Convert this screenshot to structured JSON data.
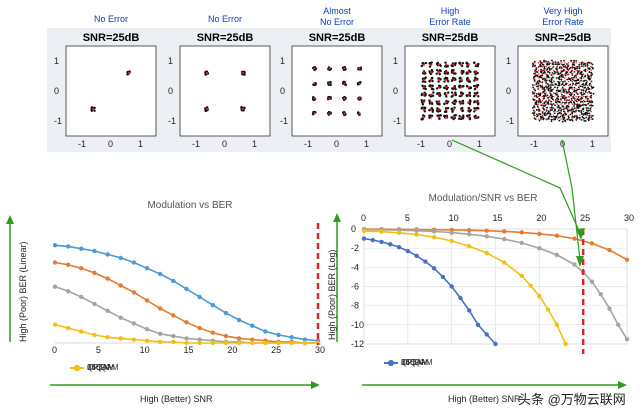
{
  "colors": {
    "s256": "#4a9bd7",
    "s64": "#e67c33",
    "s16": "#a5a5a5",
    "qpsk": "#f2c014",
    "dark": "#4472c4",
    "red": "#d9262b",
    "green": "#2e9b1e",
    "label": "#0b3fb8"
  },
  "constellations": [
    {
      "label": "No Error",
      "snr": "SNR=25dB",
      "ticks_x": [
        "-1",
        "0",
        "1"
      ],
      "ticks_y": [
        "1",
        "0",
        "-1"
      ]
    },
    {
      "label": "No Error",
      "snr": "SNR=25dB",
      "ticks_x": [
        "-1",
        "0",
        "1"
      ],
      "ticks_y": [
        "1",
        "0",
        "-1"
      ]
    },
    {
      "label": "Almost\nNo Error",
      "snr": "SNR=25dB",
      "ticks_x": [
        "-1",
        "0",
        "1"
      ],
      "ticks_y": [
        "1",
        "0",
        "-1"
      ]
    },
    {
      "label": "High\nError Rate",
      "snr": "SNR=25dB",
      "ticks_x": [
        "-1",
        "0",
        "1"
      ],
      "ticks_y": [
        "1",
        "0",
        "-1"
      ]
    },
    {
      "label": "Very High\nError Rate",
      "snr": "SNR=25dB",
      "ticks_x": [
        "-1",
        "0",
        "1"
      ],
      "ticks_y": [
        "1",
        "0",
        "-1"
      ]
    }
  ],
  "chart_data": [
    {
      "type": "line",
      "title": "Modulation vs BER",
      "xlabel": "",
      "ylabel": "High (Poor) BER (Linear)",
      "x_ticks": [
        "0",
        "5",
        "10",
        "15",
        "20",
        "25",
        "30"
      ],
      "xlim": [
        0,
        30
      ],
      "ylim": [
        0,
        1
      ],
      "x": [
        0,
        1.5,
        3,
        4.5,
        6,
        7.5,
        9,
        10.5,
        12,
        13.5,
        15,
        16.5,
        18,
        19.5,
        21,
        22.5,
        24,
        25.5,
        27,
        28.5,
        30
      ],
      "series": [
        {
          "name": "256QAM",
          "values": [
            0.85,
            0.84,
            0.82,
            0.8,
            0.77,
            0.74,
            0.7,
            0.65,
            0.6,
            0.54,
            0.47,
            0.4,
            0.33,
            0.26,
            0.2,
            0.15,
            0.1,
            0.07,
            0.05,
            0.03,
            0.02
          ]
        },
        {
          "name": "64QAM",
          "values": [
            0.7,
            0.68,
            0.65,
            0.61,
            0.56,
            0.5,
            0.44,
            0.37,
            0.3,
            0.24,
            0.18,
            0.13,
            0.09,
            0.06,
            0.04,
            0.03,
            0.02,
            0.01,
            0.01,
            0.0,
            0.0
          ]
        },
        {
          "name": "16QAM",
          "values": [
            0.49,
            0.45,
            0.4,
            0.34,
            0.28,
            0.22,
            0.17,
            0.12,
            0.08,
            0.06,
            0.04,
            0.03,
            0.02,
            0.01,
            0.01,
            0.0,
            0.0,
            0.0,
            0.0,
            0.0,
            0.0
          ]
        },
        {
          "name": "QPSK",
          "values": [
            0.16,
            0.13,
            0.1,
            0.07,
            0.05,
            0.04,
            0.03,
            0.02,
            0.01,
            0.01,
            0.0,
            0.0,
            0.0,
            0.0,
            0.0,
            0.0,
            0.0,
            0.0,
            0.0,
            0.0,
            0.0
          ]
        }
      ],
      "marker_line_x": 30,
      "legend": [
        "256QAM",
        "64QAM",
        "16QAM",
        "QPSK"
      ],
      "bottom_label": "High (Better) SNR"
    },
    {
      "type": "line",
      "title": "Modulation/SNR vs BER",
      "xlabel": "",
      "ylabel": "High (Poor) BER (Log)",
      "x_ticks": [
        "0",
        "5",
        "10",
        "15",
        "20",
        "25",
        "30"
      ],
      "y_ticks": [
        "0",
        "-2",
        "-4",
        "-6",
        "-8",
        "-10",
        "-12"
      ],
      "xlim": [
        0,
        30
      ],
      "ylim": [
        -12,
        0
      ],
      "series": [
        {
          "name": "256QAM",
          "x": [
            0,
            2,
            4,
            6,
            8,
            10,
            12,
            14,
            16,
            18,
            20,
            22,
            24,
            26,
            28,
            30
          ],
          "values": [
            -0.01,
            -0.02,
            -0.03,
            -0.05,
            -0.07,
            -0.1,
            -0.13,
            -0.18,
            -0.25,
            -0.35,
            -0.5,
            -0.7,
            -1.0,
            -1.5,
            -2.2,
            -3.2
          ]
        },
        {
          "name": "64QAM",
          "x": [
            0,
            2,
            4,
            6,
            8,
            10,
            12,
            14,
            16,
            18,
            20,
            22,
            24,
            25,
            26,
            27,
            28,
            29,
            30
          ],
          "values": [
            -0.05,
            -0.08,
            -0.12,
            -0.18,
            -0.26,
            -0.38,
            -0.54,
            -0.76,
            -1.05,
            -1.45,
            -2.0,
            -2.7,
            -3.7,
            -4.5,
            -5.5,
            -6.8,
            -8.3,
            -10.0,
            -11.5
          ]
        },
        {
          "name": "16QAM",
          "x": [
            0,
            2,
            4,
            6,
            8,
            10,
            12,
            14,
            16,
            18,
            19,
            20,
            21,
            22,
            23
          ],
          "values": [
            -0.2,
            -0.28,
            -0.4,
            -0.58,
            -0.85,
            -1.25,
            -1.8,
            -2.5,
            -3.5,
            -4.9,
            -5.9,
            -7.0,
            -8.4,
            -10.0,
            -12.0
          ]
        },
        {
          "name": "QPSK",
          "x": [
            0,
            1,
            2,
            3,
            4,
            5,
            6,
            7,
            8,
            9,
            10,
            11,
            12,
            13,
            14,
            15
          ],
          "values": [
            -1.0,
            -1.15,
            -1.35,
            -1.6,
            -1.9,
            -2.3,
            -2.8,
            -3.4,
            -4.1,
            -5.0,
            -6.0,
            -7.2,
            -8.5,
            -10.0,
            -11.0,
            -12.0
          ]
        }
      ],
      "marker_line_x": 25,
      "legend": [
        "256QAM",
        "64QAM",
        "16QAM",
        "QPSK"
      ],
      "bottom_label": "High (Better) SNR"
    }
  ],
  "watermark": "头条 @万物云联网"
}
